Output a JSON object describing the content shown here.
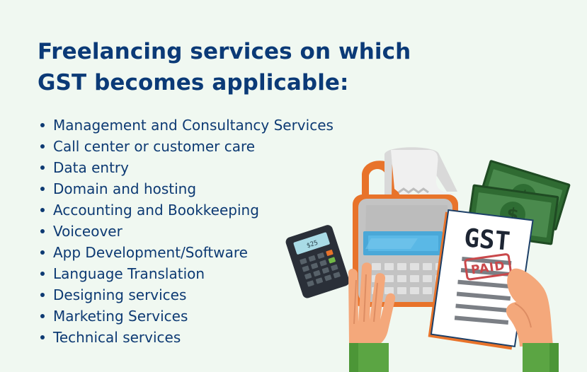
{
  "heading": {
    "line1": "Freelancing services on which",
    "line2": "GST becomes applicable:"
  },
  "services": [
    "Management and Consultancy Services",
    "Call center or customer care",
    "Data entry",
    "Domain and hosting",
    "Accounting and Bookkeeping",
    "Voiceover",
    "App Development/Software",
    "Language Translation",
    "Designing services",
    "Marketing Services",
    "Technical services"
  ],
  "illustration": {
    "calculator_display": "$25",
    "document_title": "GST",
    "stamp_text": "PAID"
  },
  "colors": {
    "background": "#f0f8f1",
    "text": "#0d3a73",
    "accent": "#e8732a",
    "stamp": "#c9484b",
    "money": "#417a43"
  }
}
